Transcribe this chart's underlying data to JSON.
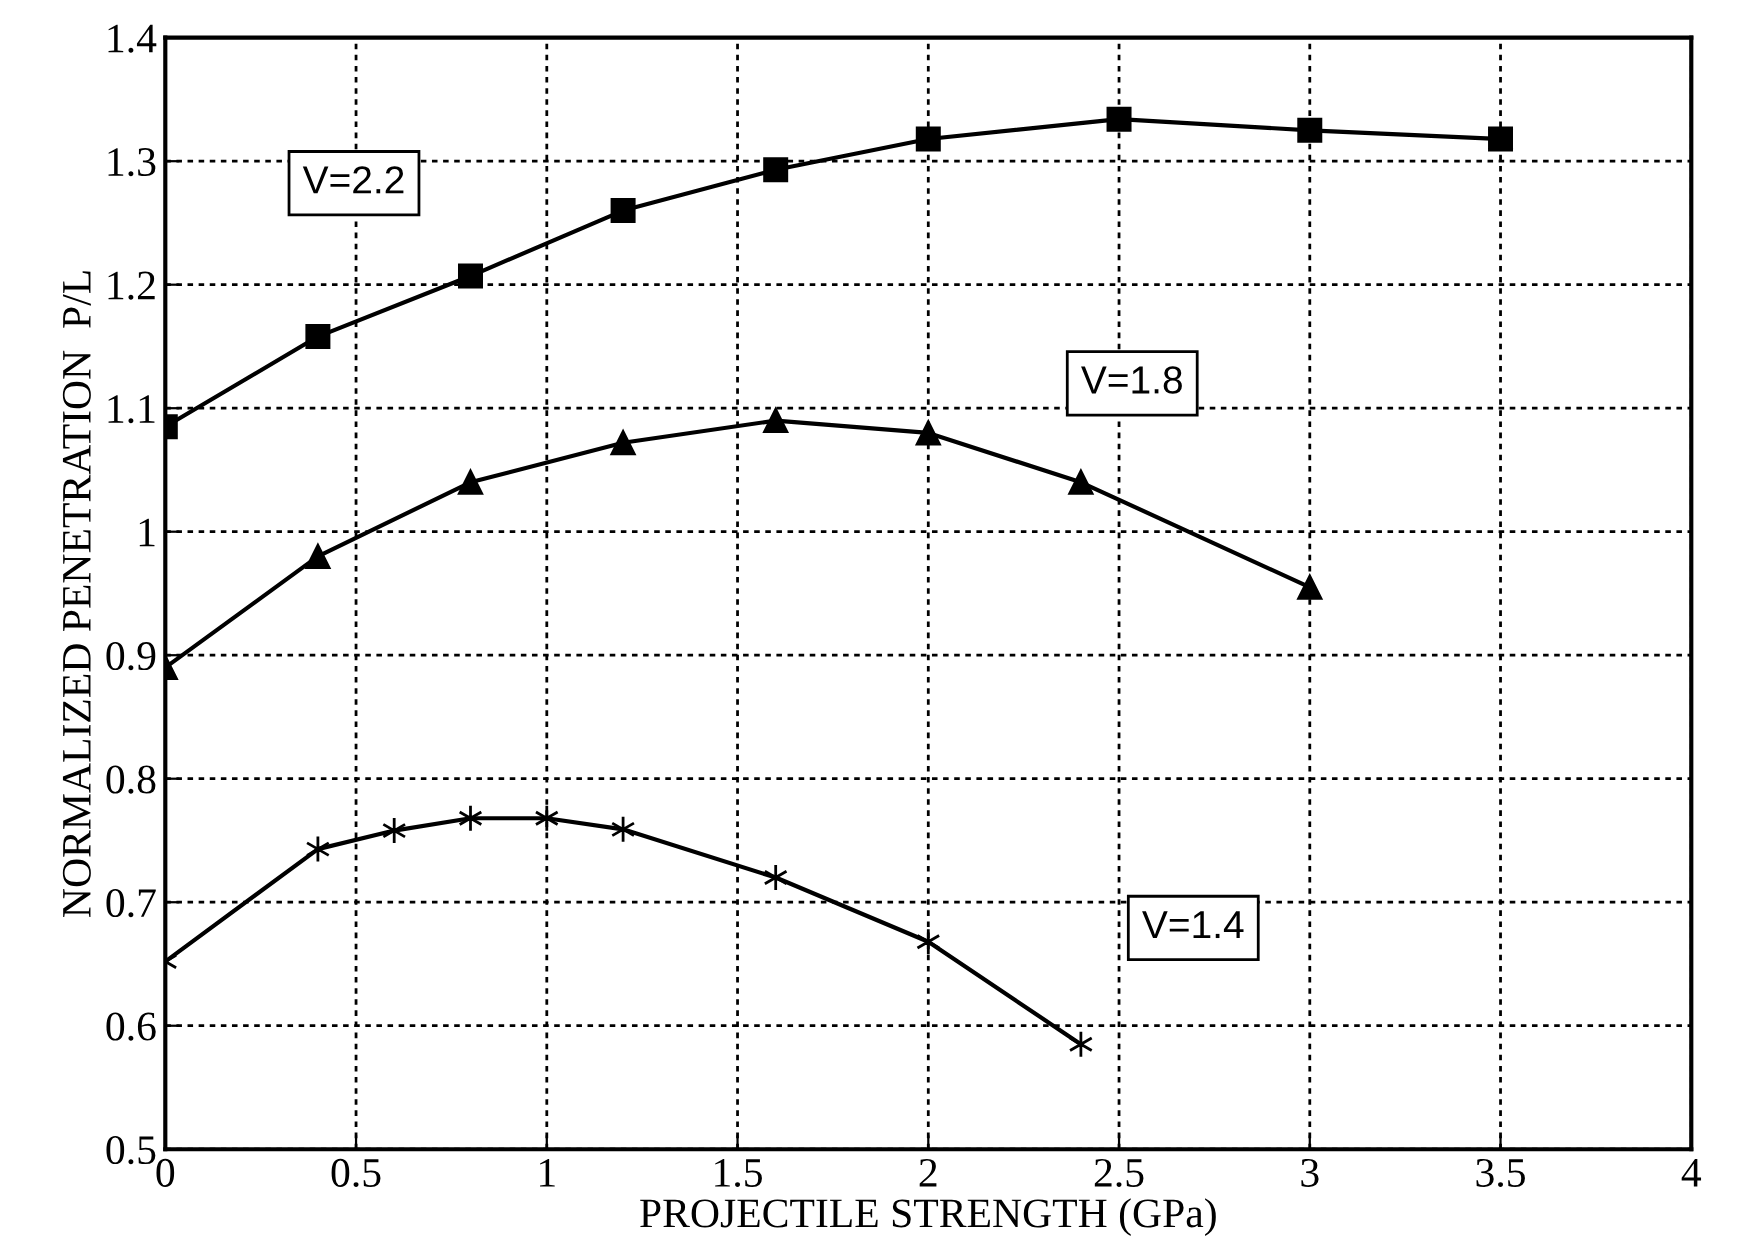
{
  "chart_data": {
    "type": "line",
    "xlabel": "PROJECTILE STRENGTH (GPa)",
    "ylabel": "NORMALIZED PENETRATION  P/L",
    "xlim": [
      0,
      4
    ],
    "ylim": [
      0.5,
      1.4
    ],
    "xticks": [
      0,
      0.5,
      1,
      1.5,
      2,
      2.5,
      3,
      3.5,
      4
    ],
    "yticks": [
      0.5,
      0.6,
      0.7,
      0.8,
      0.9,
      1,
      1.1,
      1.2,
      1.3,
      1.4
    ],
    "grid": true,
    "legend": false,
    "line_style": "solid",
    "series": [
      {
        "name": "V=2.2",
        "color": "#000000",
        "marker": "square",
        "x": [
          0,
          0.4,
          0.8,
          1.2,
          1.6,
          2.0,
          2.5,
          3.0,
          3.5
        ],
        "values": [
          1.085,
          1.158,
          1.207,
          1.26,
          1.293,
          1.318,
          1.334,
          1.325,
          1.318
        ]
      },
      {
        "name": "V=1.8",
        "color": "#000000",
        "marker": "triangle",
        "x": [
          0,
          0.4,
          0.8,
          1.2,
          1.6,
          2.0,
          2.4,
          3.0
        ],
        "values": [
          0.89,
          0.98,
          1.04,
          1.072,
          1.09,
          1.08,
          1.04,
          0.955
        ]
      },
      {
        "name": "V=1.4",
        "color": "#000000",
        "marker": "cross",
        "x": [
          0,
          0.4,
          0.6,
          0.8,
          1.0,
          1.2,
          1.6,
          2.0,
          2.4
        ],
        "values": [
          0.652,
          0.743,
          0.758,
          0.768,
          0.768,
          0.759,
          0.72,
          0.668,
          0.585
        ]
      }
    ]
  }
}
